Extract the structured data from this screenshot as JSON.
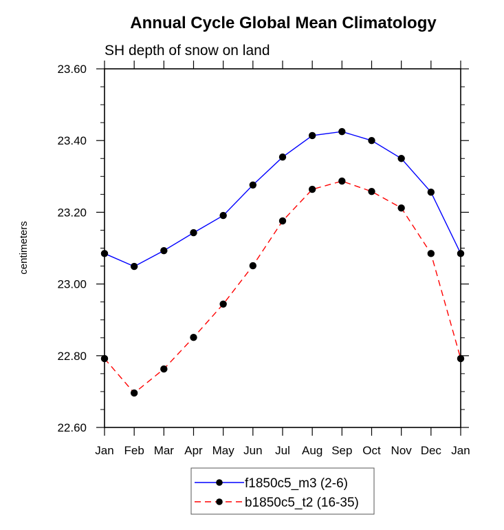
{
  "chart_data": {
    "type": "line",
    "title": "Annual Cycle Global Mean Climatology",
    "subtitle": "SH depth of snow on land",
    "xlabel": "",
    "ylabel": "centimeters",
    "categories": [
      "Jan",
      "Feb",
      "Mar",
      "Apr",
      "May",
      "Jun",
      "Jul",
      "Aug",
      "Sep",
      "Oct",
      "Nov",
      "Dec",
      "Jan"
    ],
    "ylim": [
      22.6,
      23.6
    ],
    "yticks": [
      22.6,
      22.8,
      23.0,
      23.2,
      23.4,
      23.6
    ],
    "ytick_labels": [
      "22.60",
      "22.80",
      "23.00",
      "23.20",
      "23.40",
      "23.60"
    ],
    "y_minor_step": 0.05,
    "grid": false,
    "legend_position": "bottom-center",
    "series": [
      {
        "name": "f1850c5_m3 (2-6)",
        "color": "#0000ff",
        "line_style": "solid",
        "marker": "filled-circle",
        "marker_color": "#000000",
        "values": [
          23.085,
          23.049,
          23.093,
          23.143,
          23.191,
          23.276,
          23.354,
          23.414,
          23.425,
          23.4,
          23.35,
          23.256,
          23.085
        ]
      },
      {
        "name": "b1850c5_t2 (16-35)",
        "color": "#ff0000",
        "line_style": "dashed",
        "marker": "filled-circle",
        "marker_color": "#000000",
        "values": [
          22.792,
          22.696,
          22.763,
          22.851,
          22.944,
          23.051,
          23.176,
          23.264,
          23.287,
          23.258,
          23.212,
          23.085,
          22.792
        ]
      }
    ]
  }
}
